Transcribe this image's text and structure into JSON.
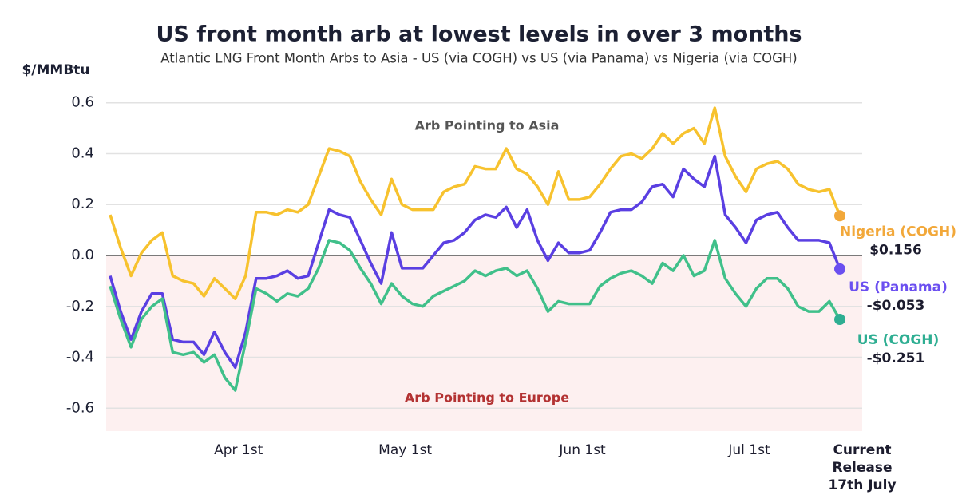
{
  "chart_data": {
    "type": "line",
    "title": "US front month arb at lowest levels in over 3 months",
    "subtitle": "Atlantic LNG Front Month Arbs to Asia - US (via COGH) vs US (via Panama) vs Nigeria (via COGH)",
    "y_label": "$/MMBtu",
    "annotations": [
      "Arb Pointing to Asia",
      "Arb Pointing to Europe"
    ],
    "categories": [
      null,
      null,
      null,
      null,
      null,
      null,
      null,
      null,
      null,
      null,
      null,
      null,
      "Apr 1st",
      null,
      null,
      null,
      null,
      null,
      null,
      null,
      null,
      null,
      null,
      null,
      null,
      null,
      null,
      null,
      "May 1st",
      null,
      null,
      null,
      null,
      null,
      null,
      null,
      null,
      null,
      null,
      null,
      null,
      null,
      null,
      null,
      null,
      "Jun 1st",
      null,
      null,
      null,
      null,
      null,
      null,
      null,
      null,
      null,
      null,
      null,
      null,
      null,
      null,
      null,
      "Jul 1st",
      null,
      null,
      null,
      null,
      null,
      null,
      null,
      null,
      "Current Release\n17th July"
    ],
    "series": [
      {
        "name": "Nigeria (COGH)",
        "color": "#f7c22e",
        "label_color": "#f2a83a",
        "values": [
          0.16,
          0.03,
          -0.08,
          0.01,
          0.06,
          0.09,
          -0.08,
          -0.1,
          -0.11,
          -0.16,
          -0.09,
          -0.13,
          -0.17,
          -0.08,
          0.17,
          0.17,
          0.16,
          0.18,
          0.17,
          0.2,
          0.31,
          0.42,
          0.41,
          0.39,
          0.29,
          0.22,
          0.16,
          0.3,
          0.2,
          0.18,
          0.18,
          0.18,
          0.25,
          0.27,
          0.28,
          0.35,
          0.34,
          0.34,
          0.42,
          0.34,
          0.32,
          0.27,
          0.2,
          0.33,
          0.22,
          0.22,
          0.23,
          0.28,
          0.34,
          0.39,
          0.4,
          0.38,
          0.42,
          0.48,
          0.44,
          0.48,
          0.5,
          0.44,
          0.58,
          0.39,
          0.31,
          0.25,
          0.34,
          0.36,
          0.37,
          0.34,
          0.28,
          0.26,
          0.25,
          0.26,
          0.156
        ],
        "value_labels": [
          null,
          null,
          null,
          null,
          null,
          null,
          null,
          null,
          null,
          null,
          null,
          null,
          null,
          null,
          null,
          null,
          null,
          null,
          null,
          null,
          null,
          null,
          null,
          null,
          null,
          null,
          null,
          null,
          null,
          null,
          null,
          null,
          null,
          null,
          null,
          null,
          null,
          null,
          null,
          null,
          null,
          null,
          null,
          null,
          null,
          null,
          null,
          null,
          null,
          null,
          null,
          null,
          null,
          null,
          null,
          null,
          null,
          null,
          null,
          null,
          null,
          null,
          null,
          null,
          null,
          null,
          null,
          null,
          null,
          null,
          "$0.156"
        ]
      },
      {
        "name": "US (Panama)",
        "color": "#5a3fe2",
        "label_color": "#6b4ff0",
        "values": [
          -0.08,
          -0.22,
          -0.33,
          -0.22,
          -0.15,
          -0.15,
          -0.33,
          -0.34,
          -0.34,
          -0.39,
          -0.3,
          -0.38,
          -0.44,
          -0.3,
          -0.09,
          -0.09,
          -0.08,
          -0.06,
          -0.09,
          -0.08,
          0.05,
          0.18,
          0.16,
          0.15,
          0.06,
          -0.03,
          -0.11,
          0.09,
          -0.05,
          -0.05,
          -0.05,
          0,
          0.05,
          0.06,
          0.09,
          0.14,
          0.16,
          0.15,
          0.19,
          0.11,
          0.18,
          0.06,
          -0.02,
          0.05,
          0.01,
          0.01,
          0.02,
          0.09,
          0.17,
          0.18,
          0.18,
          0.21,
          0.27,
          0.28,
          0.23,
          0.34,
          0.3,
          0.27,
          0.39,
          0.16,
          0.11,
          0.05,
          0.14,
          0.16,
          0.17,
          0.11,
          0.06,
          0.06,
          0.06,
          0.05,
          -0.053
        ],
        "value_labels": [
          null,
          null,
          null,
          null,
          null,
          null,
          null,
          null,
          null,
          null,
          null,
          null,
          null,
          null,
          null,
          null,
          null,
          null,
          null,
          null,
          null,
          null,
          null,
          null,
          null,
          null,
          null,
          null,
          null,
          null,
          null,
          null,
          null,
          null,
          null,
          null,
          null,
          null,
          null,
          null,
          null,
          null,
          null,
          null,
          null,
          null,
          null,
          null,
          null,
          null,
          null,
          null,
          null,
          null,
          null,
          null,
          null,
          null,
          null,
          null,
          null,
          null,
          null,
          null,
          null,
          null,
          null,
          null,
          null,
          null,
          "-$0.053"
        ]
      },
      {
        "name": "US (COGH)",
        "color": "#40c08a",
        "label_color": "#2eae92",
        "values": [
          -0.12,
          -0.25,
          -0.36,
          -0.25,
          -0.2,
          -0.17,
          -0.38,
          -0.39,
          -0.38,
          -0.42,
          -0.39,
          -0.48,
          -0.53,
          -0.34,
          -0.13,
          -0.15,
          -0.18,
          -0.15,
          -0.16,
          -0.13,
          -0.05,
          0.06,
          0.05,
          0.02,
          -0.05,
          -0.11,
          -0.19,
          -0.11,
          -0.16,
          -0.19,
          -0.2,
          -0.16,
          -0.14,
          -0.12,
          -0.1,
          -0.06,
          -0.08,
          -0.06,
          -0.05,
          -0.08,
          -0.06,
          -0.13,
          -0.22,
          -0.18,
          -0.19,
          -0.19,
          -0.19,
          -0.12,
          -0.09,
          -0.07,
          -0.06,
          -0.08,
          -0.11,
          -0.03,
          -0.06,
          0,
          -0.08,
          -0.06,
          0.06,
          -0.09,
          -0.15,
          -0.2,
          -0.13,
          -0.09,
          -0.09,
          -0.13,
          -0.2,
          -0.22,
          -0.22,
          -0.18,
          -0.251
        ],
        "value_labels": [
          null,
          null,
          null,
          null,
          null,
          null,
          null,
          null,
          null,
          null,
          null,
          null,
          null,
          null,
          null,
          null,
          null,
          null,
          null,
          null,
          null,
          null,
          null,
          null,
          null,
          null,
          null,
          null,
          null,
          null,
          null,
          null,
          null,
          null,
          null,
          null,
          null,
          null,
          null,
          null,
          null,
          null,
          null,
          null,
          null,
          null,
          null,
          null,
          null,
          null,
          null,
          null,
          null,
          null,
          null,
          null,
          null,
          null,
          null,
          null,
          null,
          null,
          null,
          null,
          null,
          null,
          null,
          null,
          null,
          null,
          "-$0.251"
        ]
      }
    ],
    "ylim": [
      -0.69,
      0.69
    ],
    "yticks": [
      -0.6,
      -0.4,
      -0.2,
      {
        "value": 0,
        "label": "0.0"
      },
      0.2,
      0.4,
      0.6
    ],
    "grid": true
  }
}
